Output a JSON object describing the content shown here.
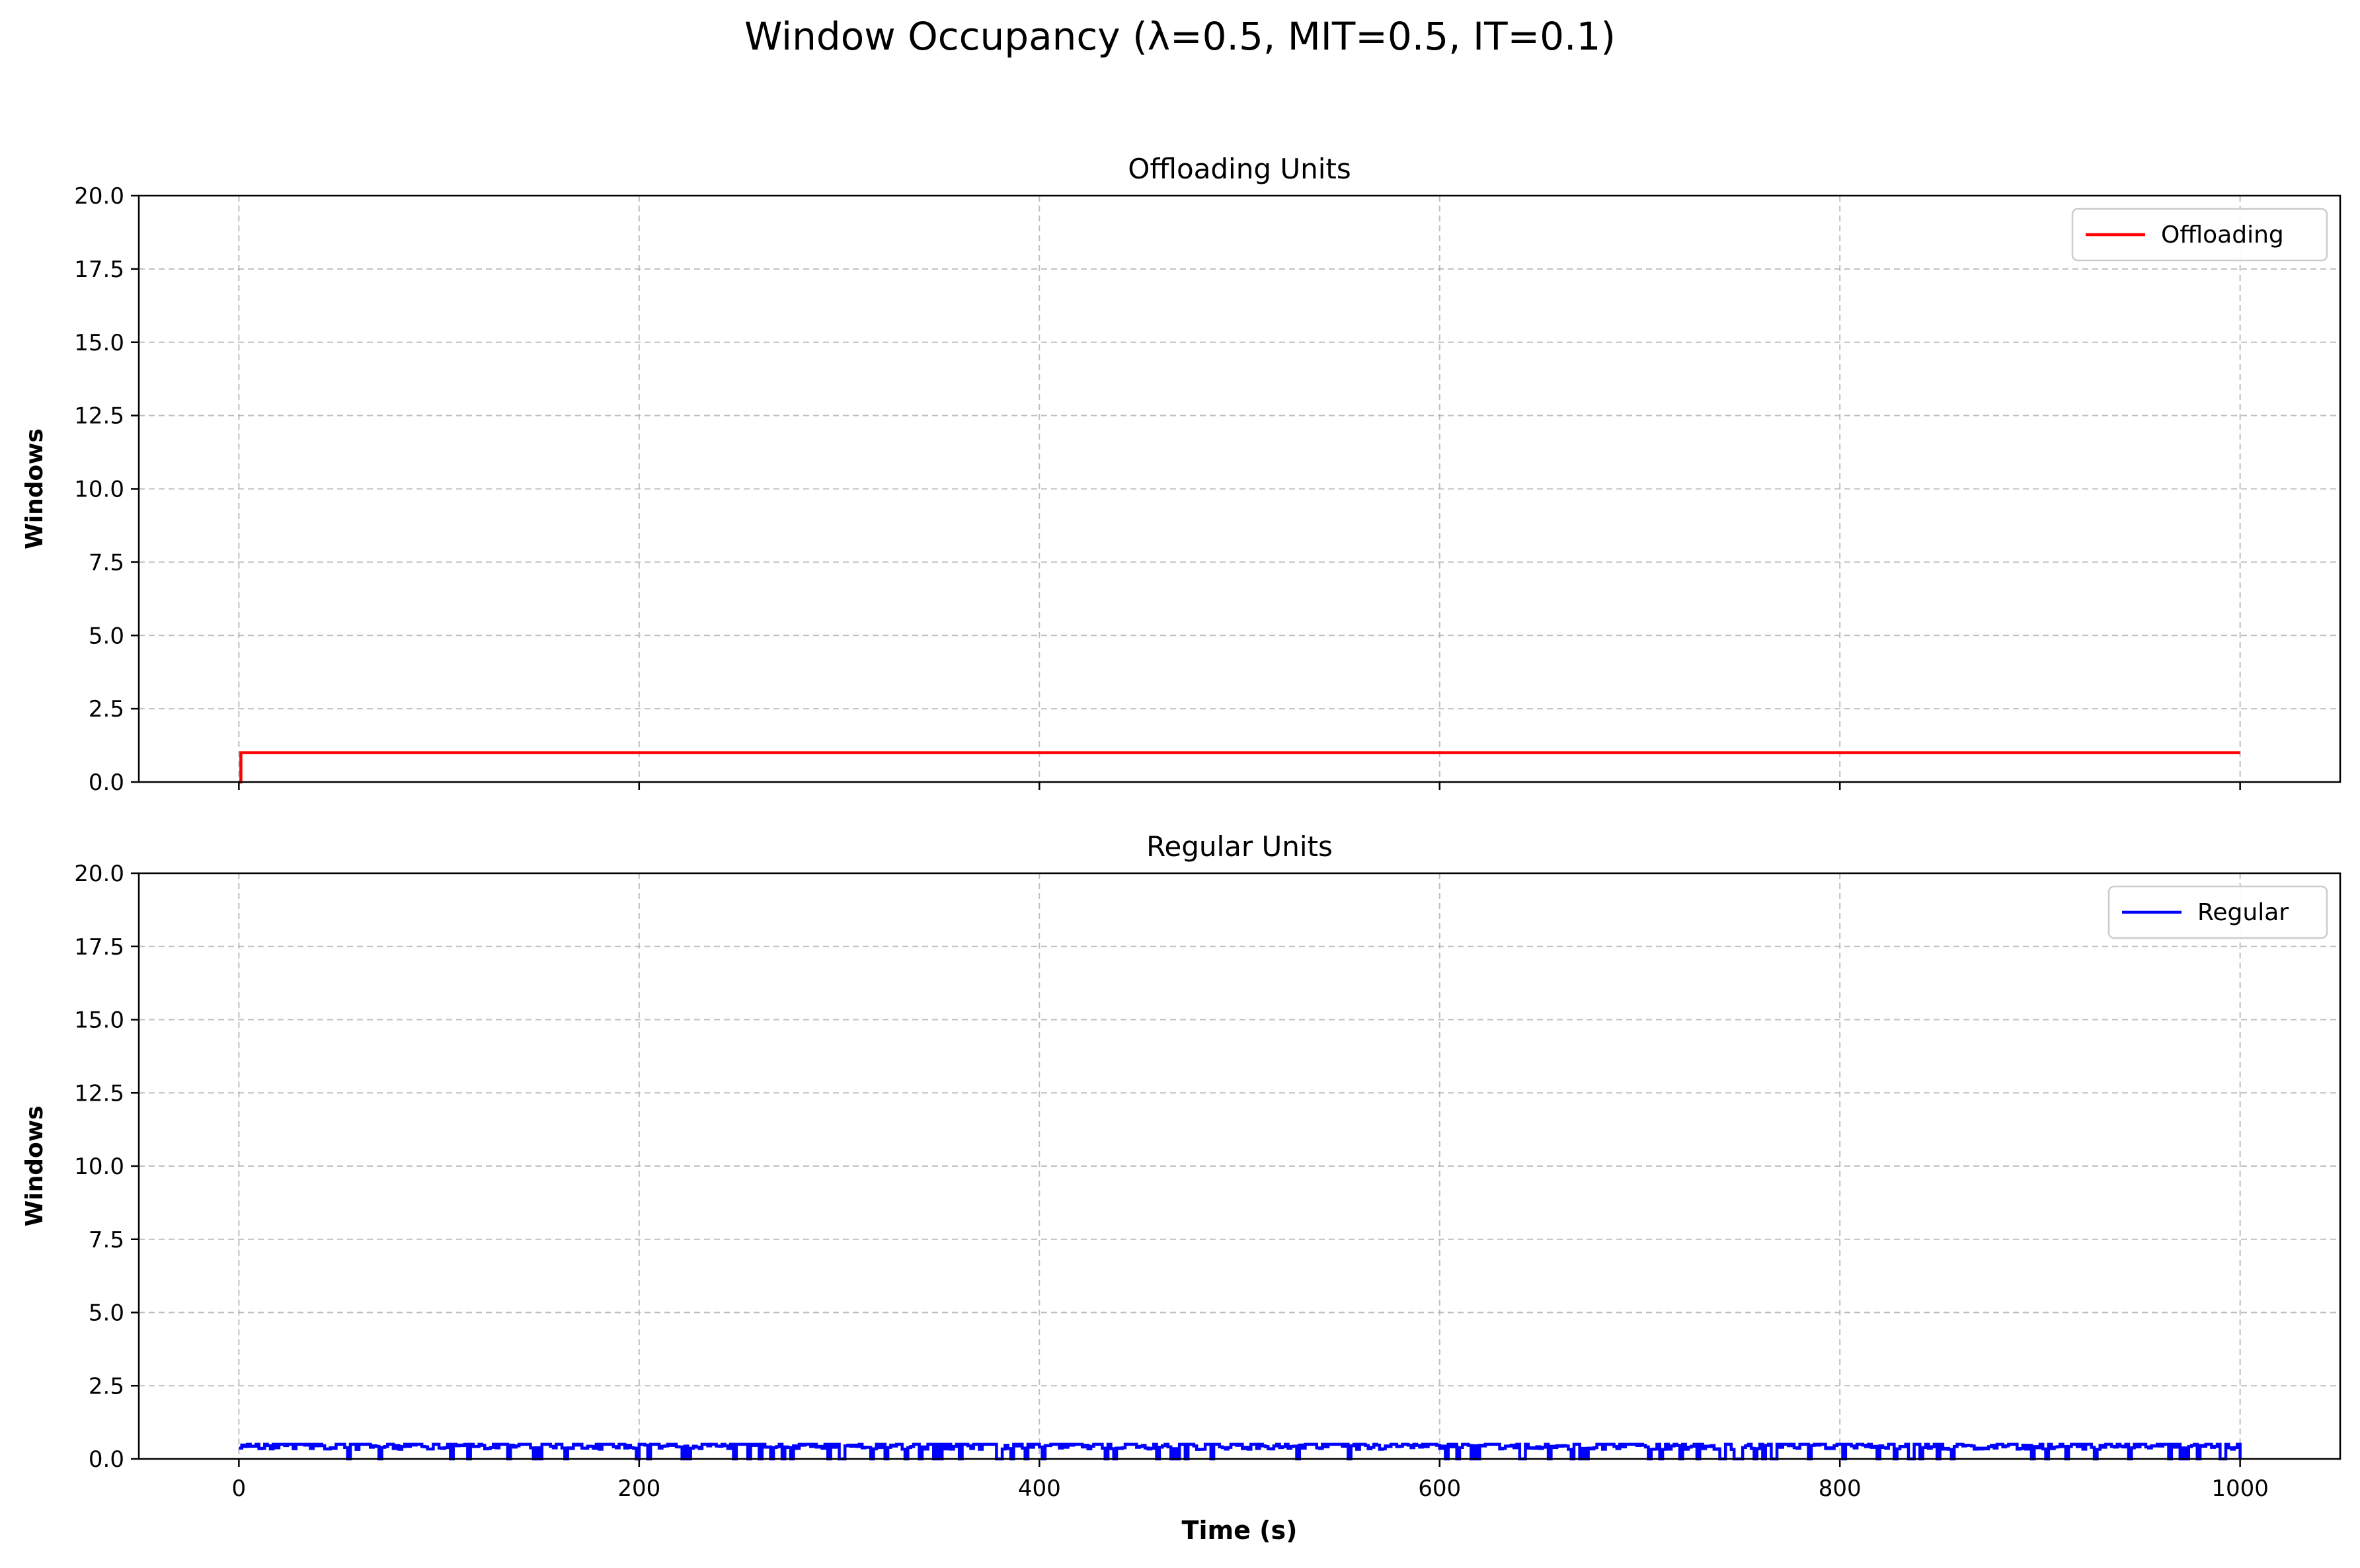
{
  "figure": {
    "title": "Window Occupancy (λ=0.5, MIT=0.5, IT=0.1)",
    "xlabel": "Time (s)"
  },
  "chart_data": [
    {
      "type": "line",
      "title": "Offloading Units",
      "xlabel": "",
      "ylabel": "Windows",
      "xlim": [
        -50,
        1050
      ],
      "ylim": [
        0,
        20
      ],
      "xticks": [
        0,
        200,
        400,
        600,
        800,
        1000
      ],
      "xtick_labels_visible": false,
      "yticks": [
        0,
        2.5,
        5,
        7.5,
        10,
        12.5,
        15,
        17.5,
        20
      ],
      "grid": true,
      "legend": "top-right",
      "series": [
        {
          "name": "Offloading",
          "color": "#ff0000",
          "step": true,
          "x": [
            0,
            1,
            1000
          ],
          "y": [
            0,
            1,
            1
          ]
        }
      ]
    },
    {
      "type": "line",
      "title": "Regular Units",
      "xlabel": "Time (s)",
      "ylabel": "Windows",
      "xlim": [
        -50,
        1050
      ],
      "ylim": [
        0,
        20
      ],
      "xticks": [
        0,
        200,
        400,
        600,
        800,
        1000
      ],
      "xtick_labels_visible": true,
      "yticks": [
        0,
        2.5,
        5,
        7.5,
        10,
        12.5,
        15,
        17.5,
        20
      ],
      "grid": true,
      "legend": "top-right",
      "series": [
        {
          "name": "Regular",
          "color": "#0000ff",
          "step": true,
          "noisy_between": [
            0,
            0.5
          ],
          "x": [
            0,
            1000
          ],
          "y": [
            0.4,
            0.4
          ]
        }
      ]
    }
  ]
}
